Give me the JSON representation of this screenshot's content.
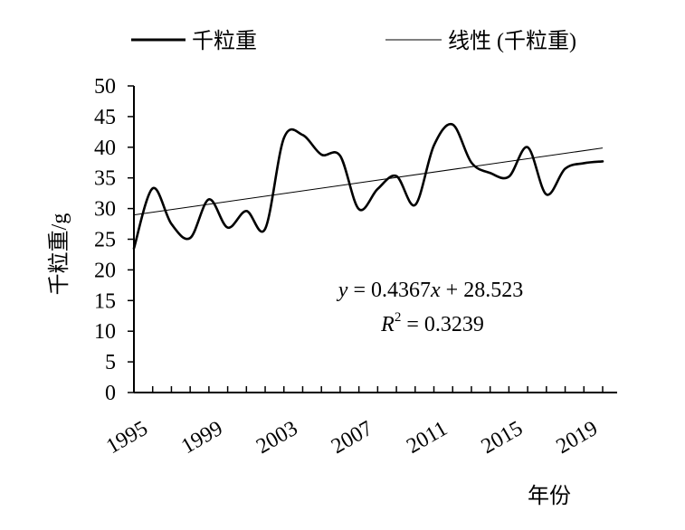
{
  "chart_data": {
    "type": "line",
    "xlabel": "年份",
    "ylabel": "千粒重/g",
    "ylim": [
      0,
      50
    ],
    "y_ticks": [
      "0",
      "5",
      "10",
      "15",
      "20",
      "25",
      "30",
      "35",
      "40",
      "45",
      "50"
    ],
    "x_tick_labels": [
      "1995",
      "1999",
      "2003",
      "2007",
      "2011",
      "2015",
      "2019"
    ],
    "x_tick_values": [
      1995,
      1999,
      2003,
      2007,
      2011,
      2015,
      2019
    ],
    "xlim": [
      1995,
      2020
    ],
    "grid": false,
    "legend_position": "top",
    "legend": {
      "series_label": "千粒重",
      "trend_label": "线性 (千粒重)"
    },
    "x": [
      1995,
      1996,
      1997,
      1998,
      1999,
      2000,
      2001,
      2002,
      2003,
      2004,
      2005,
      2006,
      2007,
      2008,
      2009,
      2010,
      2011,
      2012,
      2013,
      2014,
      2015,
      2016,
      2017,
      2018,
      2019,
      2020
    ],
    "series": [
      {
        "name": "千粒重",
        "values": [
          23.5,
          33.3,
          27.5,
          25.2,
          31.5,
          26.9,
          29.6,
          26.7,
          41.5,
          42.0,
          38.8,
          38.6,
          29.9,
          33.2,
          35.3,
          30.6,
          40.3,
          43.7,
          37.5,
          35.8,
          35.2,
          40.0,
          32.3,
          36.5,
          37.4,
          37.7
        ]
      },
      {
        "name": "线性 (千粒重)",
        "trend": true,
        "slope": 0.4367,
        "intercept": 28.523
      }
    ],
    "annotation": {
      "equation_y": "y",
      "equation_rest": " = 0.4367",
      "equation_x": "x",
      "equation_tail": " + 28.523",
      "r2_label": "R",
      "r2_exp": "2",
      "r2_value": " = 0.3239"
    },
    "colors": {
      "line": "#000000",
      "axis": "#000000",
      "background": "#ffffff"
    }
  }
}
